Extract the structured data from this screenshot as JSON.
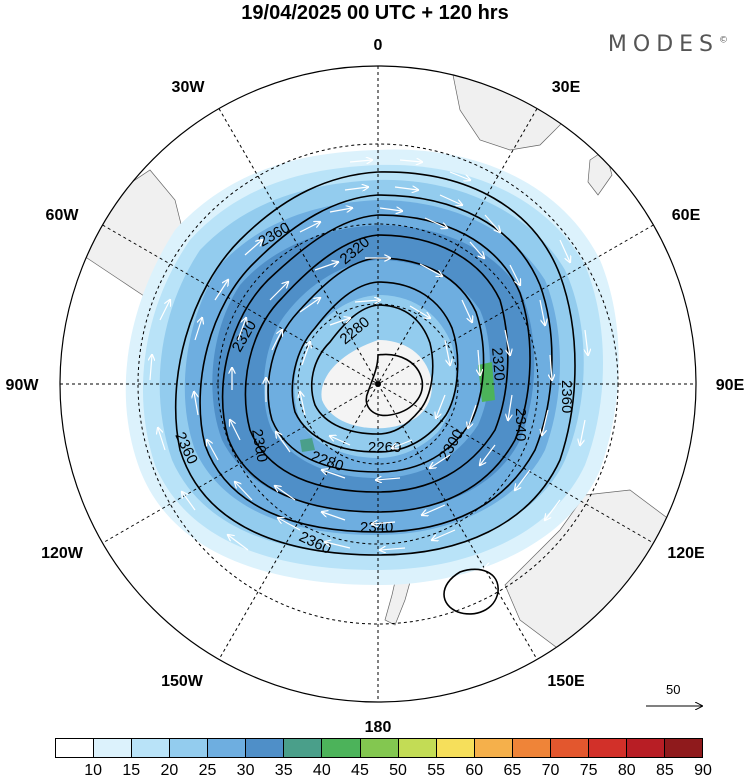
{
  "header": {
    "title": "19/04/2025  00 UTC  + 120 hrs",
    "logo": "MODES",
    "logo_mark": "©"
  },
  "map": {
    "projection": "south polar stereographic",
    "longitude_labels": [
      "0",
      "30E",
      "60E",
      "90E",
      "120E",
      "150E",
      "180",
      "150W",
      "120W",
      "90W",
      "60W",
      "30W"
    ],
    "contour_labels": [
      "2360",
      "2320",
      "2280",
      "2320",
      "2300",
      "2260",
      "2280",
      "2300",
      "2340",
      "2360",
      "2360",
      "2320",
      "2340",
      "2360"
    ],
    "vector_key": "50"
  },
  "colorbar": {
    "ticks": [
      "10",
      "15",
      "20",
      "25",
      "30",
      "35",
      "40",
      "45",
      "50",
      "55",
      "60",
      "65",
      "70",
      "75",
      "80",
      "85",
      "90"
    ],
    "colors": [
      "#ffffff",
      "#dcf2fc",
      "#b9e3f8",
      "#93ccee",
      "#6eaee0",
      "#4f8fc8",
      "#4a9f8a",
      "#4cb35a",
      "#83c750",
      "#c3dc55",
      "#f6df5b",
      "#f5b04b",
      "#ef8438",
      "#e3572e",
      "#d23029",
      "#b81e25",
      "#8f1a1c"
    ]
  }
}
